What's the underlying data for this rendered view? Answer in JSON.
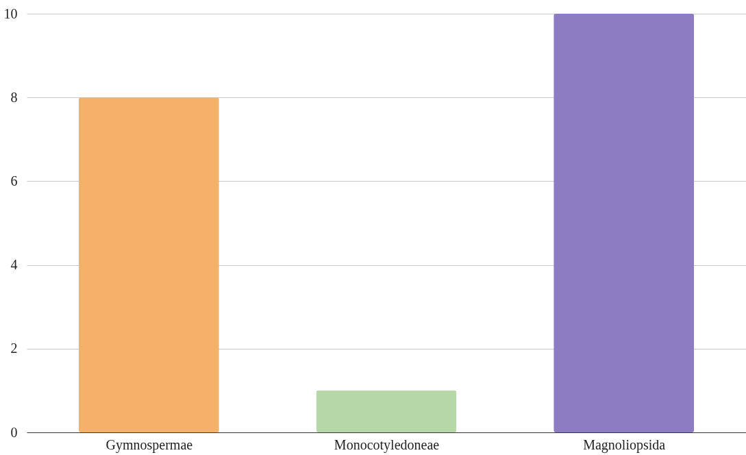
{
  "chart_data": {
    "type": "bar",
    "categories": [
      "Gymnospermae",
      "Monocotyledoneae",
      "Magnoliopsida"
    ],
    "values": [
      8,
      1,
      10
    ],
    "colors": [
      "#f5b06a",
      "#b6d7a8",
      "#8e7cc3"
    ],
    "ylim": [
      0,
      10
    ],
    "yticks": [
      0,
      2,
      4,
      6,
      8,
      10
    ],
    "grid": "y"
  }
}
